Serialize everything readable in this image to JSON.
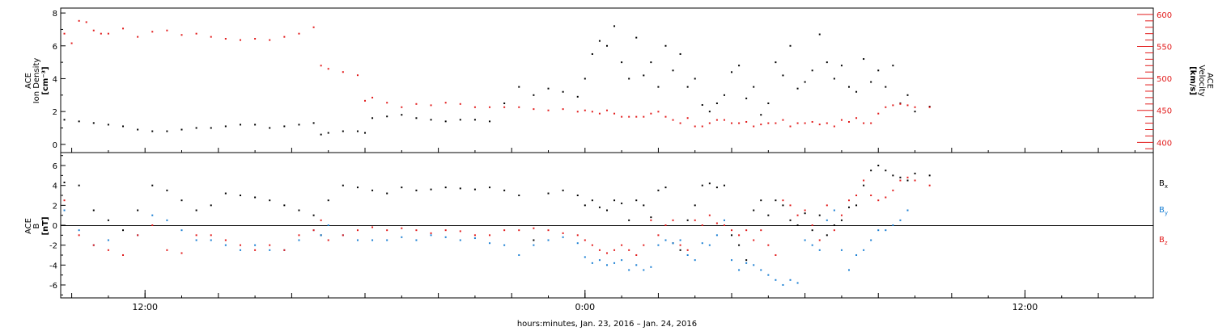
{
  "footer": {
    "xlabel": "hours:minutes, Jan. 23, 2016 – Jan. 24, 2016"
  },
  "chart_data": [
    {
      "type": "scatter",
      "panel": "top",
      "ylabel_left": [
        "ACE",
        "Ion Density",
        "[cm⁻³]"
      ],
      "ylabel_right": [
        "ACE",
        "Velocity",
        "[km/s]"
      ],
      "xlim_hours": [
        9.7,
        39.5
      ],
      "x_tick_labels": [
        {
          "hour": 12,
          "label": "12:00"
        },
        {
          "hour": 24,
          "label": "0:00"
        },
        {
          "hour": 36,
          "label": "12:00"
        }
      ],
      "ylim_left": [
        -0.5,
        8.3
      ],
      "yticks_left": [
        0,
        2,
        4,
        6,
        8
      ],
      "ylim_right": [
        384,
        610
      ],
      "yticks_right": [
        400,
        450,
        500,
        550,
        600
      ],
      "colors": {
        "density": "#000000",
        "velocity": "#e21b1b"
      },
      "series": [
        {
          "name": "Ion Density",
          "axis": "left",
          "color": "#000000",
          "x": [
            9.8,
            10.2,
            10.6,
            11.0,
            11.4,
            11.8,
            12.2,
            12.6,
            13.0,
            13.4,
            13.8,
            14.2,
            14.6,
            15.0,
            15.4,
            15.8,
            16.2,
            16.6,
            16.8,
            17.0,
            17.4,
            17.8,
            18.0,
            18.2,
            18.6,
            19.0,
            19.4,
            19.8,
            20.2,
            20.6,
            21.0,
            21.4,
            21.8,
            22.2,
            22.6,
            23.0,
            23.4,
            23.8,
            24.0,
            24.2,
            24.4,
            24.6,
            24.8,
            25.0,
            25.2,
            25.4,
            25.6,
            25.8,
            26.0,
            26.2,
            26.4,
            26.6,
            26.8,
            27.0,
            27.2,
            27.4,
            27.6,
            27.8,
            28.0,
            28.2,
            28.4,
            28.6,
            28.8,
            29.0,
            29.2,
            29.4,
            29.6,
            29.8,
            30.0,
            30.2,
            30.4,
            30.6,
            30.8,
            31.0,
            31.2,
            31.4,
            31.6,
            31.8,
            32.0,
            32.2,
            32.4,
            32.6,
            32.8,
            33.0,
            33.4
          ],
          "values": [
            1.5,
            1.4,
            1.3,
            1.2,
            1.1,
            0.9,
            0.8,
            0.8,
            0.9,
            1.0,
            1.0,
            1.1,
            1.2,
            1.2,
            1.0,
            1.1,
            1.2,
            1.3,
            0.6,
            0.7,
            0.8,
            0.8,
            0.7,
            1.6,
            1.7,
            1.8,
            1.6,
            1.5,
            1.4,
            1.5,
            1.5,
            1.4,
            2.5,
            3.5,
            3.0,
            3.4,
            3.2,
            2.9,
            4.0,
            5.5,
            6.3,
            6.0,
            7.2,
            5.0,
            4.0,
            6.5,
            4.2,
            5.0,
            3.5,
            6.0,
            4.5,
            5.5,
            3.5,
            4.0,
            2.4,
            2.0,
            2.5,
            3.0,
            4.4,
            4.8,
            2.8,
            3.5,
            1.8,
            2.5,
            5.0,
            4.2,
            6.0,
            3.4,
            3.8,
            4.5,
            6.7,
            5.0,
            4.0,
            4.8,
            3.5,
            3.2,
            5.2,
            3.8,
            4.5,
            3.5,
            4.8,
            2.5,
            3.0,
            2.0,
            2.3
          ]
        },
        {
          "name": "Velocity",
          "axis": "right",
          "color": "#e21b1b",
          "x": [
            9.8,
            10.0,
            10.2,
            10.4,
            10.6,
            10.8,
            11.0,
            11.4,
            11.8,
            12.2,
            12.6,
            13.0,
            13.4,
            13.8,
            14.2,
            14.6,
            15.0,
            15.4,
            15.8,
            16.2,
            16.6,
            16.8,
            17.0,
            17.4,
            17.8,
            18.0,
            18.2,
            18.6,
            19.0,
            19.4,
            19.8,
            20.2,
            20.6,
            21.0,
            21.4,
            21.8,
            22.2,
            22.6,
            23.0,
            23.4,
            23.8,
            24.0,
            24.2,
            24.4,
            24.6,
            24.8,
            25.0,
            25.2,
            25.4,
            25.6,
            25.8,
            26.0,
            26.2,
            26.4,
            26.6,
            26.8,
            27.0,
            27.2,
            27.4,
            27.6,
            27.8,
            28.0,
            28.2,
            28.4,
            28.6,
            28.8,
            29.0,
            29.2,
            29.4,
            29.6,
            29.8,
            30.0,
            30.2,
            30.4,
            30.6,
            30.8,
            31.0,
            31.2,
            31.4,
            31.6,
            31.8,
            32.0,
            32.2,
            32.4,
            32.6,
            32.8,
            33.0,
            33.4
          ],
          "values": [
            570,
            555,
            590,
            588,
            575,
            570,
            570,
            578,
            565,
            573,
            575,
            568,
            570,
            565,
            562,
            560,
            562,
            560,
            565,
            570,
            580,
            520,
            515,
            510,
            505,
            465,
            470,
            462,
            455,
            460,
            458,
            462,
            460,
            455,
            455,
            455,
            455,
            452,
            450,
            452,
            448,
            450,
            448,
            445,
            450,
            445,
            440,
            440,
            440,
            440,
            445,
            448,
            440,
            435,
            430,
            438,
            425,
            425,
            430,
            435,
            435,
            430,
            430,
            432,
            425,
            428,
            430,
            430,
            435,
            425,
            430,
            430,
            432,
            428,
            430,
            425,
            435,
            432,
            438,
            430,
            430,
            445,
            455,
            458,
            460,
            458,
            455,
            455
          ]
        }
      ]
    },
    {
      "type": "scatter",
      "panel": "bottom",
      "ylabel_left": [
        "ACE",
        "B",
        "[nT]"
      ],
      "xlim_hours": [
        9.7,
        39.5
      ],
      "x_tick_labels": [
        {
          "hour": 12,
          "label": "12:00"
        },
        {
          "hour": 24,
          "label": "0:00"
        },
        {
          "hour": 36,
          "label": "12:00"
        }
      ],
      "ylim": [
        -7.3,
        7.3
      ],
      "yticks": [
        -6,
        -4,
        -2,
        0,
        2,
        4,
        6
      ],
      "zero_line": true,
      "legend_position": "right",
      "series": [
        {
          "name": "Bx",
          "label_main": "B",
          "label_sub": "x",
          "color": "#000000",
          "x": [
            9.8,
            10.2,
            10.6,
            11.0,
            11.4,
            11.8,
            12.2,
            12.6,
            13.0,
            13.4,
            13.8,
            14.2,
            14.6,
            15.0,
            15.4,
            15.8,
            16.2,
            16.6,
            16.8,
            17.0,
            17.4,
            17.8,
            18.2,
            18.6,
            19.0,
            19.4,
            19.8,
            20.2,
            20.6,
            21.0,
            21.4,
            21.8,
            22.2,
            22.6,
            23.0,
            23.4,
            23.8,
            24.0,
            24.2,
            24.4,
            24.6,
            24.8,
            25.0,
            25.2,
            25.4,
            25.6,
            25.8,
            26.0,
            26.2,
            26.4,
            26.6,
            26.8,
            27.0,
            27.2,
            27.4,
            27.6,
            27.8,
            28.0,
            28.2,
            28.4,
            28.6,
            28.8,
            29.0,
            29.2,
            29.4,
            29.6,
            29.8,
            30.0,
            30.2,
            30.4,
            30.6,
            30.8,
            31.0,
            31.2,
            31.4,
            31.6,
            31.8,
            32.0,
            32.2,
            32.4,
            32.6,
            32.8,
            33.0,
            33.4
          ],
          "values": [
            4.3,
            4.0,
            1.5,
            0.5,
            -0.5,
            1.5,
            4.0,
            3.5,
            2.5,
            1.5,
            2.0,
            3.2,
            3.0,
            2.8,
            2.5,
            2.0,
            1.5,
            1.0,
            -1.0,
            2.5,
            4.0,
            3.8,
            3.5,
            3.2,
            3.8,
            3.5,
            3.6,
            3.8,
            3.7,
            3.6,
            3.8,
            3.5,
            3.0,
            -1.5,
            3.2,
            3.5,
            3.0,
            2.0,
            2.5,
            1.8,
            1.5,
            2.5,
            2.2,
            0.5,
            2.5,
            2.0,
            0.8,
            3.5,
            3.8,
            -1.8,
            -2.5,
            0.5,
            2.0,
            4.0,
            4.2,
            3.8,
            4.0,
            -1.0,
            -2.0,
            -3.5,
            1.5,
            2.5,
            1.0,
            2.5,
            2.0,
            0.5,
            0.0,
            1.2,
            -0.5,
            1.0,
            -1.0,
            0.0,
            0.5,
            1.8,
            2.0,
            4.0,
            5.5,
            6.0,
            5.5,
            5.0,
            4.8,
            4.5,
            5.2,
            5.0
          ]
        },
        {
          "name": "By",
          "label_main": "B",
          "label_sub": "y",
          "color": "#1a7fd3",
          "x": [
            9.8,
            10.2,
            10.6,
            11.0,
            11.4,
            11.8,
            12.2,
            12.6,
            13.0,
            13.4,
            13.8,
            14.2,
            14.6,
            15.0,
            15.4,
            15.8,
            16.2,
            16.6,
            16.8,
            17.0,
            17.4,
            17.8,
            18.2,
            18.6,
            19.0,
            19.4,
            19.8,
            20.2,
            20.6,
            21.0,
            21.4,
            21.8,
            22.2,
            22.6,
            23.0,
            23.4,
            23.8,
            24.0,
            24.2,
            24.4,
            24.6,
            24.8,
            25.0,
            25.2,
            25.4,
            25.6,
            25.8,
            26.0,
            26.2,
            26.4,
            26.6,
            26.8,
            27.0,
            27.2,
            27.4,
            27.6,
            27.8,
            28.0,
            28.2,
            28.4,
            28.6,
            28.8,
            29.0,
            29.2,
            29.4,
            29.6,
            29.8,
            30.0,
            30.2,
            30.4,
            30.6,
            30.8,
            31.0,
            31.2,
            31.4,
            31.6,
            31.8,
            32.0,
            32.2,
            32.4,
            32.6,
            32.8
          ],
          "values": [
            1.5,
            -0.5,
            -2.0,
            -1.5,
            -3.0,
            -1.0,
            1.0,
            0.5,
            -0.5,
            -1.5,
            -1.5,
            -2.0,
            -2.5,
            -2.0,
            -2.5,
            -2.5,
            -1.5,
            -0.5,
            -1.0,
            0.0,
            -1.0,
            -1.5,
            -1.5,
            -1.5,
            -1.2,
            -1.5,
            -1.0,
            -1.2,
            -1.5,
            -1.3,
            -1.8,
            -2.0,
            -3.0,
            -2.0,
            -1.5,
            -1.2,
            -1.8,
            -3.2,
            -3.8,
            -3.5,
            -4.0,
            -3.8,
            -3.5,
            -4.5,
            -4.0,
            -4.5,
            -4.2,
            -2.0,
            -1.5,
            -1.8,
            -1.5,
            -3.0,
            -3.5,
            -1.8,
            -2.0,
            -1.0,
            0.5,
            -3.5,
            -4.5,
            -3.8,
            -4.0,
            -4.5,
            -5.0,
            -5.5,
            -6.0,
            -5.5,
            -5.8,
            -1.5,
            -2.0,
            -2.5,
            0.5,
            1.5,
            -2.5,
            -4.5,
            -3.0,
            -2.5,
            -1.5,
            -0.5,
            -0.5,
            0.0,
            0.5,
            1.5
          ]
        },
        {
          "name": "Bz",
          "label_main": "B",
          "label_sub": "z",
          "color": "#e21b1b",
          "x": [
            9.8,
            10.2,
            10.6,
            11.0,
            11.4,
            11.8,
            12.2,
            12.6,
            13.0,
            13.4,
            13.8,
            14.2,
            14.6,
            15.0,
            15.4,
            15.8,
            16.2,
            16.6,
            16.8,
            17.0,
            17.4,
            17.8,
            18.2,
            18.6,
            19.0,
            19.4,
            19.8,
            20.2,
            20.6,
            21.0,
            21.4,
            21.8,
            22.2,
            22.6,
            23.0,
            23.4,
            23.8,
            24.0,
            24.2,
            24.4,
            24.6,
            24.8,
            25.0,
            25.2,
            25.4,
            25.6,
            25.8,
            26.0,
            26.2,
            26.4,
            26.6,
            26.8,
            27.0,
            27.2,
            27.4,
            27.6,
            27.8,
            28.0,
            28.2,
            28.4,
            28.6,
            28.8,
            29.0,
            29.2,
            29.4,
            29.6,
            29.8,
            30.0,
            30.2,
            30.4,
            30.6,
            30.8,
            31.0,
            31.2,
            31.4,
            31.6,
            31.8,
            32.0,
            32.2,
            32.4,
            32.6,
            32.8,
            33.0,
            33.4
          ],
          "values": [
            2.5,
            -1.0,
            -2.0,
            -2.5,
            -3.0,
            -1.0,
            0.0,
            -2.5,
            -2.8,
            -1.0,
            -1.0,
            -1.5,
            -2.0,
            -2.5,
            -2.0,
            -2.5,
            -1.0,
            -0.5,
            0.5,
            -1.5,
            -1.0,
            -0.5,
            -0.2,
            -0.5,
            -0.3,
            -0.5,
            -0.8,
            -0.5,
            -0.6,
            -1.0,
            -1.0,
            -0.5,
            -0.5,
            -0.3,
            -0.5,
            -0.8,
            -1.0,
            -1.5,
            -2.0,
            -2.5,
            -2.8,
            -2.5,
            -2.0,
            -2.5,
            -3.0,
            -2.0,
            0.5,
            -1.0,
            0.0,
            0.5,
            -2.0,
            -2.5,
            0.5,
            0.0,
            1.0,
            0.2,
            0.0,
            -0.5,
            -1.0,
            -0.5,
            -1.5,
            -0.5,
            -2.0,
            -3.0,
            2.5,
            2.0,
            1.0,
            1.5,
            0.0,
            -1.5,
            2.0,
            -0.5,
            1.0,
            2.5,
            3.0,
            4.5,
            3.0,
            2.5,
            2.8,
            3.5,
            4.5,
            4.8,
            4.5,
            4.0
          ]
        }
      ]
    }
  ]
}
